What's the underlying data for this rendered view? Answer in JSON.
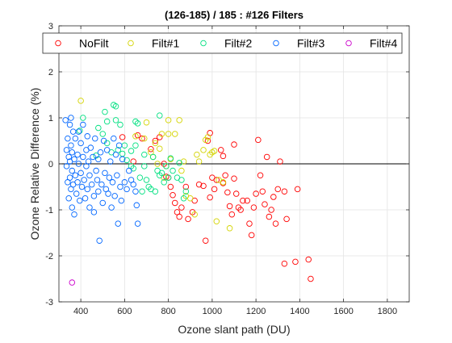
{
  "chart_data": {
    "type": "scatter",
    "title": "(126-185) / 185 : #126 Filters",
    "xlabel": "Ozone slant path (DU)",
    "ylabel": "Ozone Relative Difference (%)",
    "xlim": [
      300,
      1900
    ],
    "ylim": [
      -3,
      3
    ],
    "xticks": [
      400,
      600,
      800,
      1000,
      1200,
      1400,
      1600,
      1800
    ],
    "yticks": [
      -3,
      -2,
      -1,
      0,
      1,
      2,
      3
    ],
    "grid": true,
    "legend_position": "top",
    "series": [
      {
        "name": "NoFilt",
        "color": "#ff0000",
        "points": [
          [
            590,
            0.58
          ],
          [
            640,
            0.05
          ],
          [
            660,
            0.62
          ],
          [
            680,
            0.55
          ],
          [
            720,
            0.32
          ],
          [
            740,
            0.5
          ],
          [
            760,
            0.58
          ],
          [
            780,
            0.0
          ],
          [
            790,
            -0.28
          ],
          [
            800,
            -0.3
          ],
          [
            810,
            -0.5
          ],
          [
            820,
            -0.68
          ],
          [
            830,
            -0.85
          ],
          [
            840,
            -1.05
          ],
          [
            850,
            -1.15
          ],
          [
            860,
            -0.95
          ],
          [
            880,
            -0.5
          ],
          [
            890,
            -1.2
          ],
          [
            910,
            -1.05
          ],
          [
            920,
            -0.8
          ],
          [
            940,
            -0.45
          ],
          [
            970,
            -1.67
          ],
          [
            960,
            -0.48
          ],
          [
            980,
            0.5
          ],
          [
            990,
            0.67
          ],
          [
            990,
            -0.73
          ],
          [
            1000,
            -0.3
          ],
          [
            1010,
            -0.55
          ],
          [
            1020,
            -0.35
          ],
          [
            1040,
            0.3
          ],
          [
            1050,
            0.17
          ],
          [
            1050,
            -0.42
          ],
          [
            1060,
            -0.25
          ],
          [
            1070,
            -0.62
          ],
          [
            1080,
            -0.92
          ],
          [
            1090,
            -1.1
          ],
          [
            1100,
            0.42
          ],
          [
            1100,
            -0.32
          ],
          [
            1110,
            -0.65
          ],
          [
            1120,
            -0.95
          ],
          [
            1130,
            -1.0
          ],
          [
            1140,
            -0.8
          ],
          [
            1160,
            -0.8
          ],
          [
            1170,
            -1.3
          ],
          [
            1180,
            -1.55
          ],
          [
            1190,
            -0.95
          ],
          [
            1200,
            -0.65
          ],
          [
            1210,
            0.52
          ],
          [
            1220,
            -0.25
          ],
          [
            1230,
            -0.6
          ],
          [
            1240,
            -0.88
          ],
          [
            1250,
            0.15
          ],
          [
            1260,
            -1.15
          ],
          [
            1270,
            -1.0
          ],
          [
            1280,
            -0.72
          ],
          [
            1290,
            -1.3
          ],
          [
            1300,
            -0.55
          ],
          [
            1310,
            0.05
          ],
          [
            1330,
            -0.6
          ],
          [
            1330,
            -2.17
          ],
          [
            1340,
            -1.2
          ],
          [
            1380,
            -2.13
          ],
          [
            1390,
            -0.55
          ],
          [
            1440,
            -2.08
          ],
          [
            1450,
            -2.5
          ]
        ]
      },
      {
        "name": "Filt#1",
        "color": "#d4d400",
        "points": [
          [
            400,
            1.37
          ],
          [
            650,
            0.6
          ],
          [
            690,
            0.55
          ],
          [
            700,
            0.9
          ],
          [
            720,
            0.25
          ],
          [
            730,
            0.15
          ],
          [
            740,
            0.45
          ],
          [
            750,
            0.0
          ],
          [
            760,
            0.33
          ],
          [
            770,
            0.65
          ],
          [
            780,
            -0.3
          ],
          [
            790,
            -0.05
          ],
          [
            800,
            0.95
          ],
          [
            800,
            0.65
          ],
          [
            810,
            0.1
          ],
          [
            830,
            0.65
          ],
          [
            850,
            0.95
          ],
          [
            860,
            -0.15
          ],
          [
            870,
            0.05
          ],
          [
            880,
            -0.7
          ],
          [
            900,
            -0.75
          ],
          [
            920,
            -1.1
          ],
          [
            930,
            0.2
          ],
          [
            940,
            0.05
          ],
          [
            960,
            0.3
          ],
          [
            970,
            0.52
          ],
          [
            980,
            0.58
          ],
          [
            990,
            0.2
          ],
          [
            1000,
            0.25
          ],
          [
            1010,
            0.28
          ],
          [
            1020,
            -1.25
          ],
          [
            1030,
            -0.35
          ],
          [
            1050,
            -0.4
          ],
          [
            1080,
            -1.4
          ]
        ]
      },
      {
        "name": "Filt#2",
        "color": "#00e080",
        "points": [
          [
            395,
            0.72
          ],
          [
            410,
            1.0
          ],
          [
            470,
            0.18
          ],
          [
            480,
            0.78
          ],
          [
            500,
            0.65
          ],
          [
            510,
            1.13
          ],
          [
            520,
            0.92
          ],
          [
            520,
            0.45
          ],
          [
            540,
            0.25
          ],
          [
            550,
            1.28
          ],
          [
            560,
            1.25
          ],
          [
            560,
            0.95
          ],
          [
            570,
            0.3
          ],
          [
            580,
            0.85
          ],
          [
            590,
            0.22
          ],
          [
            600,
            0.4
          ],
          [
            610,
            0.08
          ],
          [
            630,
            0.28
          ],
          [
            630,
            -0.05
          ],
          [
            640,
            -0.1
          ],
          [
            650,
            0.4
          ],
          [
            650,
            0.92
          ],
          [
            660,
            0.88
          ],
          [
            670,
            -0.3
          ],
          [
            680,
            -0.6
          ],
          [
            690,
            0.2
          ],
          [
            690,
            -0.05
          ],
          [
            700,
            -0.35
          ],
          [
            710,
            -0.5
          ],
          [
            720,
            -0.55
          ],
          [
            730,
            0.15
          ],
          [
            740,
            -0.6
          ],
          [
            750,
            -0.15
          ],
          [
            760,
            1.05
          ],
          [
            760,
            -0.25
          ],
          [
            770,
            -0.2
          ],
          [
            780,
            -0.4
          ],
          [
            790,
            -0.05
          ],
          [
            800,
            -0.3
          ],
          [
            810,
            0.12
          ],
          [
            820,
            -0.15
          ],
          [
            840,
            -0.3
          ],
          [
            850,
            0.02
          ],
          [
            860,
            -0.35
          ],
          [
            870,
            -0.75
          ],
          [
            880,
            -0.6
          ]
        ]
      },
      {
        "name": "Filt#3",
        "color": "#0066ff",
        "points": [
          [
            330,
            0.95
          ],
          [
            335,
            0.3
          ],
          [
            335,
            -0.05
          ],
          [
            340,
            0.55
          ],
          [
            340,
            -0.4
          ],
          [
            345,
            0.15
          ],
          [
            345,
            -0.75
          ],
          [
            350,
            0.85
          ],
          [
            350,
            0.05
          ],
          [
            350,
            -0.3
          ],
          [
            355,
            1.0
          ],
          [
            355,
            0.4
          ],
          [
            355,
            -0.55
          ],
          [
            360,
            0.25
          ],
          [
            360,
            -0.15
          ],
          [
            360,
            -0.95
          ],
          [
            365,
            0.7
          ],
          [
            365,
            -0.45
          ],
          [
            370,
            0.1
          ],
          [
            370,
            -1.1
          ],
          [
            375,
            0.55
          ],
          [
            375,
            -0.25
          ],
          [
            380,
            -0.65
          ],
          [
            385,
            0.2
          ],
          [
            385,
            -0.4
          ],
          [
            390,
            0.7
          ],
          [
            390,
            0.0
          ],
          [
            395,
            -0.8
          ],
          [
            400,
            0.45
          ],
          [
            400,
            -0.2
          ],
          [
            405,
            -0.5
          ],
          [
            410,
            0.85
          ],
          [
            410,
            0.15
          ],
          [
            415,
            -0.35
          ],
          [
            420,
            -0.75
          ],
          [
            425,
            0.3
          ],
          [
            425,
            -0.05
          ],
          [
            430,
            0.6
          ],
          [
            430,
            -0.55
          ],
          [
            435,
            0.05
          ],
          [
            440,
            -0.25
          ],
          [
            440,
            -0.95
          ],
          [
            445,
            0.35
          ],
          [
            450,
            -0.45
          ],
          [
            455,
            0.15
          ],
          [
            460,
            -0.7
          ],
          [
            460,
            -1.05
          ],
          [
            465,
            0.55
          ],
          [
            470,
            -0.15
          ],
          [
            475,
            -0.35
          ],
          [
            480,
            0.1
          ],
          [
            480,
            -0.6
          ],
          [
            485,
            -1.67
          ],
          [
            490,
            0.25
          ],
          [
            495,
            -0.45
          ],
          [
            500,
            -0.85
          ],
          [
            505,
            0.5
          ],
          [
            510,
            -0.2
          ],
          [
            515,
            -0.55
          ],
          [
            520,
            0.3
          ],
          [
            525,
            -0.65
          ],
          [
            530,
            -0.3
          ],
          [
            535,
            0.05
          ],
          [
            540,
            -0.95
          ],
          [
            545,
            -0.4
          ],
          [
            550,
            0.55
          ],
          [
            555,
            -0.7
          ],
          [
            560,
            0.2
          ],
          [
            565,
            -0.25
          ],
          [
            570,
            -1.3
          ],
          [
            575,
            0.4
          ],
          [
            580,
            -0.5
          ],
          [
            585,
            -0.8
          ],
          [
            590,
            0.1
          ],
          [
            600,
            -0.4
          ],
          [
            610,
            -0.55
          ],
          [
            620,
            -0.15
          ],
          [
            630,
            -0.35
          ],
          [
            640,
            -0.45
          ],
          [
            650,
            -0.6
          ],
          [
            655,
            -0.9
          ],
          [
            660,
            -1.3
          ]
        ]
      },
      {
        "name": "Filt#4",
        "color": "#cc00cc",
        "points": [
          [
            360,
            -2.58
          ]
        ]
      }
    ]
  }
}
